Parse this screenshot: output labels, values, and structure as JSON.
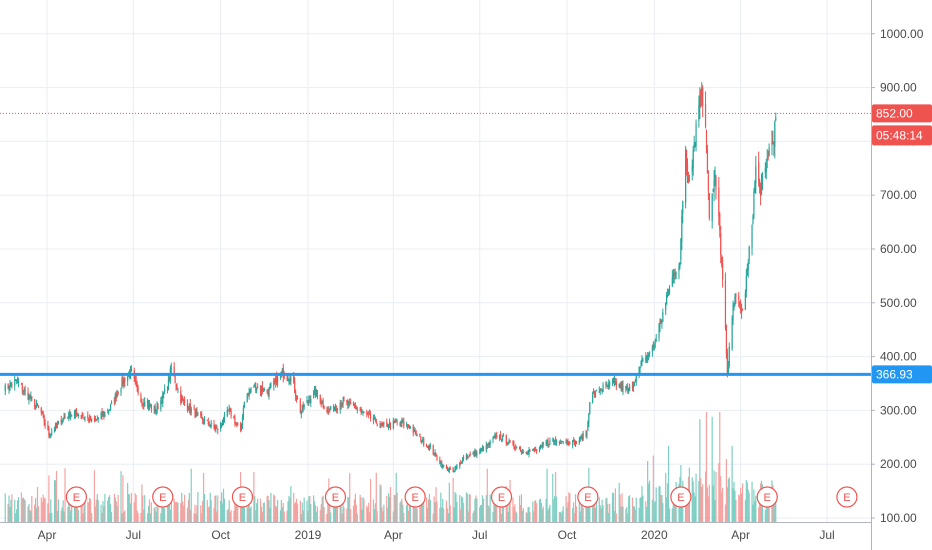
{
  "colors": {
    "up": "#26a69a",
    "down": "#ef5350",
    "vol_up": "#7fcfc4",
    "vol_down": "#f5a3a1",
    "grid": "#e9eef3",
    "support": "#2196f3",
    "price_line": "#ef5350",
    "background": "#ffffff"
  },
  "price_tag": {
    "label": "852.00",
    "timer": "05:48:14"
  },
  "level_tag": {
    "label": "366.93"
  },
  "earnings_label": "E",
  "chart_data": {
    "type": "candlestick",
    "x_range": [
      "2018-02-15",
      "2020-08-05"
    ],
    "y_range": [
      100,
      1060
    ],
    "y_ticks": [
      "100.00",
      "200.00",
      "300.00",
      "400.00",
      "500.00",
      "600.00",
      "700.00",
      "800.00",
      "900.00",
      "1000.00"
    ],
    "x_ticks": [
      {
        "date": "2018-04-01",
        "label": "Apr"
      },
      {
        "date": "2018-07-01",
        "label": "Jul"
      },
      {
        "date": "2018-10-01",
        "label": "Oct"
      },
      {
        "date": "2019-01-01",
        "label": "2019"
      },
      {
        "date": "2019-04-01",
        "label": "Apr"
      },
      {
        "date": "2019-07-01",
        "label": "Jul"
      },
      {
        "date": "2019-10-01",
        "label": "Oct"
      },
      {
        "date": "2020-01-01",
        "label": "2020"
      },
      {
        "date": "2020-04-01",
        "label": "Apr"
      },
      {
        "date": "2020-07-01",
        "label": "Jul"
      }
    ],
    "price_path": [
      [
        "2018-02-15",
        340
      ],
      [
        "2018-02-28",
        355
      ],
      [
        "2018-03-15",
        320
      ],
      [
        "2018-03-25",
        300
      ],
      [
        "2018-04-03",
        255
      ],
      [
        "2018-04-20",
        290
      ],
      [
        "2018-05-05",
        295
      ],
      [
        "2018-05-20",
        278
      ],
      [
        "2018-06-05",
        300
      ],
      [
        "2018-06-20",
        355
      ],
      [
        "2018-06-28",
        370
      ],
      [
        "2018-07-10",
        318
      ],
      [
        "2018-07-25",
        300
      ],
      [
        "2018-08-06",
        345
      ],
      [
        "2018-08-10",
        378
      ],
      [
        "2018-08-20",
        320
      ],
      [
        "2018-09-01",
        300
      ],
      [
        "2018-09-10",
        285
      ],
      [
        "2018-09-28",
        265
      ],
      [
        "2018-10-10",
        300
      ],
      [
        "2018-10-22",
        260
      ],
      [
        "2018-10-26",
        320
      ],
      [
        "2018-11-05",
        345
      ],
      [
        "2018-11-20",
        335
      ],
      [
        "2018-12-05",
        370
      ],
      [
        "2018-12-15",
        358
      ],
      [
        "2018-12-24",
        298
      ],
      [
        "2019-01-08",
        335
      ],
      [
        "2019-01-22",
        298
      ],
      [
        "2019-02-05",
        315
      ],
      [
        "2019-02-20",
        305
      ],
      [
        "2019-03-05",
        290
      ],
      [
        "2019-03-20",
        270
      ],
      [
        "2019-04-05",
        278
      ],
      [
        "2019-04-18",
        270
      ],
      [
        "2019-04-30",
        245
      ],
      [
        "2019-05-10",
        230
      ],
      [
        "2019-05-24",
        195
      ],
      [
        "2019-06-03",
        185
      ],
      [
        "2019-06-15",
        215
      ],
      [
        "2019-06-28",
        220
      ],
      [
        "2019-07-10",
        235
      ],
      [
        "2019-07-20",
        255
      ],
      [
        "2019-08-01",
        240
      ],
      [
        "2019-08-15",
        225
      ],
      [
        "2019-08-30",
        225
      ],
      [
        "2019-09-10",
        240
      ],
      [
        "2019-09-25",
        245
      ],
      [
        "2019-10-10",
        240
      ],
      [
        "2019-10-22",
        258
      ],
      [
        "2019-10-25",
        320
      ],
      [
        "2019-11-05",
        340
      ],
      [
        "2019-11-20",
        350
      ],
      [
        "2019-12-05",
        335
      ],
      [
        "2019-12-20",
        390
      ],
      [
        "2019-12-31",
        418
      ],
      [
        "2020-01-10",
        480
      ],
      [
        "2020-01-20",
        545
      ],
      [
        "2020-01-28",
        580
      ],
      [
        "2020-02-03",
        790
      ],
      [
        "2020-02-05",
        735
      ],
      [
        "2020-02-10",
        770
      ],
      [
        "2020-02-19",
        900
      ],
      [
        "2020-02-24",
        835
      ],
      [
        "2020-02-28",
        667
      ],
      [
        "2020-03-05",
        730
      ],
      [
        "2020-03-10",
        630
      ],
      [
        "2020-03-16",
        445
      ],
      [
        "2020-03-18",
        361
      ],
      [
        "2020-03-24",
        505
      ],
      [
        "2020-03-30",
        500
      ],
      [
        "2020-04-03",
        480
      ],
      [
        "2020-04-09",
        573
      ],
      [
        "2020-04-13",
        650
      ],
      [
        "2020-04-17",
        750
      ],
      [
        "2020-04-21",
        710
      ],
      [
        "2020-04-26",
        725
      ],
      [
        "2020-04-30",
        780
      ],
      [
        "2020-05-05",
        800
      ],
      [
        "2020-05-07",
        825
      ],
      [
        "2020-05-09",
        852
      ]
    ],
    "support_level": 366.93,
    "last_price": 852.0,
    "earnings_dates": [
      "2018-05-02",
      "2018-08-01",
      "2018-10-24",
      "2019-01-30",
      "2019-04-24",
      "2019-07-24",
      "2019-10-23",
      "2020-01-29",
      "2020-04-29",
      "2020-07-22"
    ]
  }
}
